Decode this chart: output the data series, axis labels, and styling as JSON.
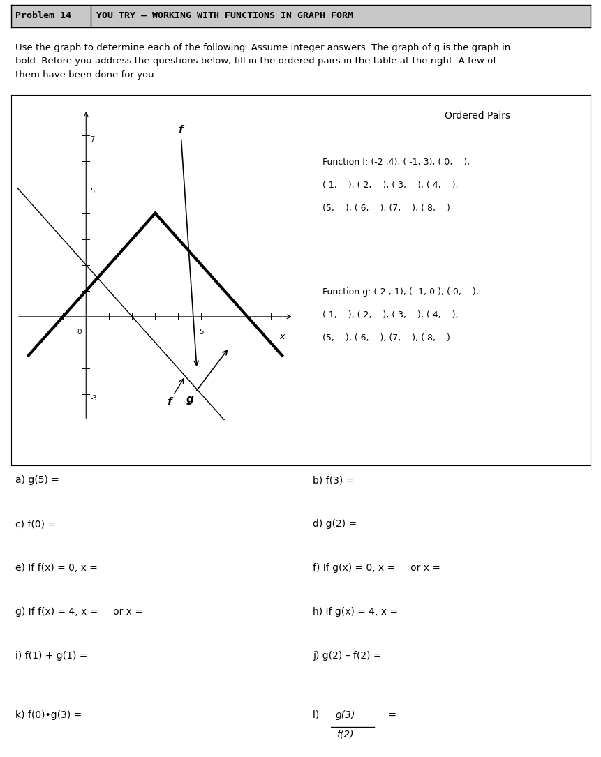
{
  "title_box": "Problem 14",
  "title_main": "YOU TRY – WORKING WITH FUNCTIONS IN GRAPH FORM",
  "description_line1": "Use the graph to determine each of the following. Assume integer answers. The graph of g is the graph in",
  "description_line2": "bold. Before you address the questions below, fill in the ordered pairs in the table at the right. A few of",
  "description_line3": "them have been done for you.",
  "ordered_pairs_title": "Ordered Pairs",
  "func_f_line1": "Function f: (-2 ,4), ( -1, 3), ( 0,    ),",
  "func_f_line2": "( 1,    ), ( 2,    ), ( 3,    ), ( 4,    ),",
  "func_f_line3": "(5,    ), ( 6,    ), (7,    ), ( 8,    )",
  "func_g_line1": "Function g: (-2 ,-1), ( -1, 0 ), ( 0,    ),",
  "func_g_line2": "( 1,    ), ( 2,    ), ( 3,    ), ( 4,    ),",
  "func_g_line3": "(5,    ), ( 6,    ), (7,    ), ( 8,    )",
  "questions_left": [
    "a) g(5) =",
    "c) f(0) =",
    "e) If f(x) = 0, x =",
    "g) If f(x) = 4, x =     or x =",
    "i) f(1) + g(1) ="
  ],
  "questions_right": [
    "b) f(3) =",
    "d) g(2) =",
    "f) If g(x) = 0, x =     or x =",
    "h) If g(x) = 4, x =",
    "j) g(2) – f(2) ="
  ],
  "q_k": "k) f(0)•g(3) =",
  "q_l_num": "g(3)",
  "q_l_den": "f(2)",
  "q_l_prefix": "l) ",
  "q_l_suffix": " =",
  "header_bg": "#c8c8c8",
  "graph_bg": "#ffffff",
  "graph_xlim": [
    -3,
    9
  ],
  "graph_ylim": [
    -4,
    8
  ]
}
